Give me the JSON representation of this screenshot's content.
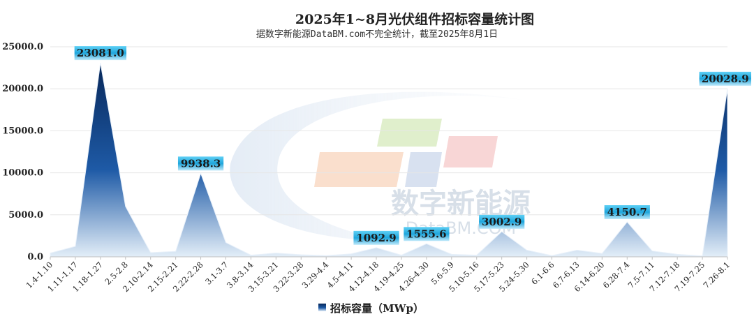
{
  "chart_data": {
    "type": "area",
    "title": "2025年1~8月光伏组件招标容量统计图",
    "subtitle": "据数字新能源DataBM.com不完全统计，截至2025年8月1日",
    "categories": [
      "1.4-1.10",
      "1.11-1.17",
      "1.18-1.27",
      "2.5-2.8",
      "2.10-2.14",
      "2.15-2.21",
      "2.22-2.28",
      "3.1-3.7",
      "3.8-3.14",
      "3.15-3.21",
      "3.22-3.28",
      "3.29-4.4",
      "4.5-4.11",
      "4.12-4.18",
      "4.19-4.25",
      "4.26-4.30",
      "5.6-5.9",
      "5.10-5.16",
      "5.17-5.23",
      "5.24-5.30",
      "6.1-6.6",
      "6.7-6.13",
      "6.14-6.20",
      "6.28-7.4",
      "7.5-7.11",
      "7.12-7.18",
      "7.19-7.25",
      "7.26-8.1"
    ],
    "series": [
      {
        "name": "招标容量（MWp）",
        "values": [
          450,
          1250,
          23081.0,
          6000,
          500,
          650,
          9938.3,
          1700,
          200,
          450,
          250,
          150,
          350,
          1092.9,
          200,
          1555.6,
          300,
          200,
          3002.9,
          800,
          150,
          800,
          400,
          4150.7,
          700,
          300,
          100,
          20028.9
        ]
      }
    ],
    "data_labels": [
      {
        "index": 2,
        "text": "23081.0"
      },
      {
        "index": 6,
        "text": "9938.3"
      },
      {
        "index": 13,
        "text": "1092.9"
      },
      {
        "index": 15,
        "text": "1555.6"
      },
      {
        "index": 18,
        "text": "3002.9"
      },
      {
        "index": 23,
        "text": "4150.7"
      },
      {
        "index": 27,
        "text": "20028.9"
      }
    ],
    "yticks": [
      "0.0",
      "5000.0",
      "10000.0",
      "15000.0",
      "20000.0",
      "25000.0"
    ],
    "ylim": [
      0,
      25000
    ],
    "grid": true,
    "legend": "bottom",
    "colors": {
      "area_top": "#0a2f66",
      "area_bottom": "#dbe9f6",
      "label_box": "#29a3dc",
      "axis": "#bfbfbf",
      "grid": "#e6e6e6"
    }
  },
  "watermark": {
    "text_cn": "数字新能源",
    "text_en": "DataBM.COM"
  }
}
